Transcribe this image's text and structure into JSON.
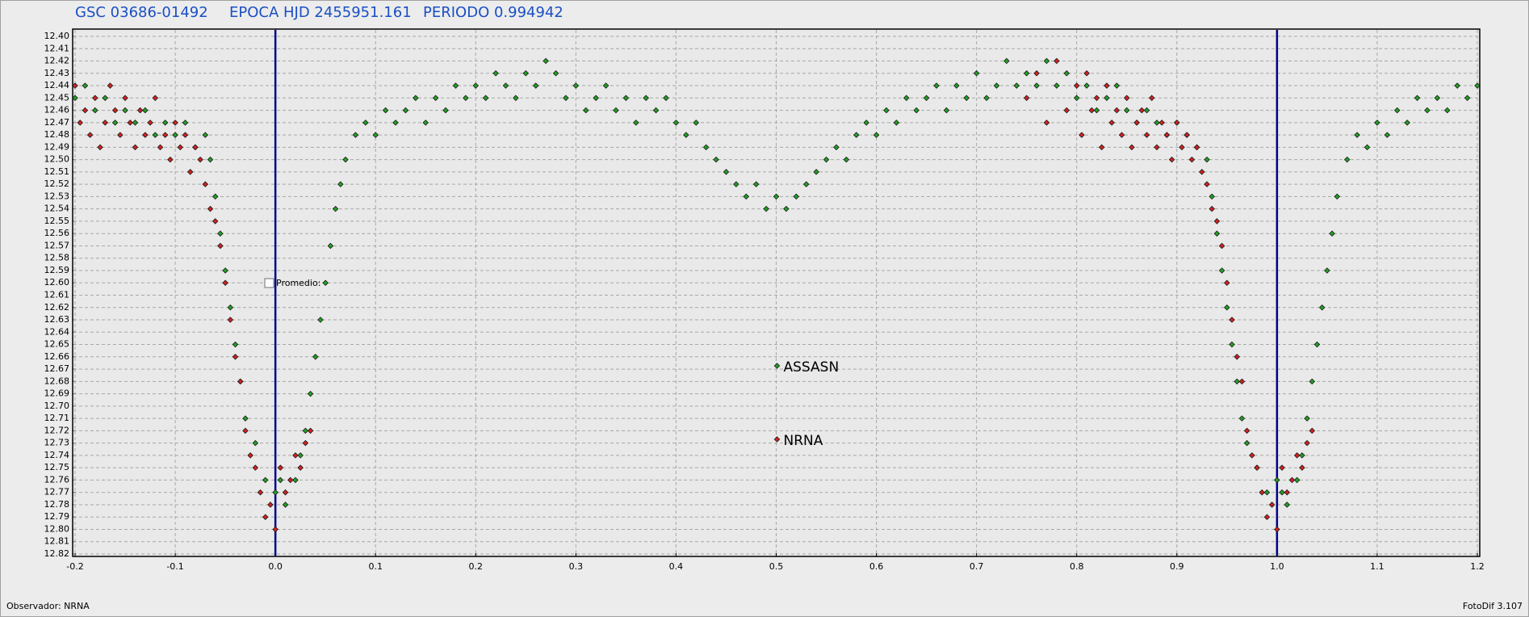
{
  "chart_data": {
    "type": "scatter",
    "title_parts": [
      "GSC 03686-01492",
      "EPOCA HJD 2455951.161",
      "PERIODO 0.994942"
    ],
    "checkbox_label": "Promedio:",
    "footer_left": "Observador: NRNA",
    "footer_right": "FotoDif 3.107",
    "xlim": [
      -0.2,
      1.2
    ],
    "xticks": [
      -0.2,
      -0.1,
      {
        "value": 0,
        "label": "0.0"
      },
      0.1,
      0.2,
      0.3,
      0.4,
      0.5,
      0.6,
      0.7,
      0.8,
      0.9,
      {
        "value": 1,
        "label": "1.0"
      },
      1.1,
      1.2
    ],
    "ylim": [
      12.4,
      12.82
    ],
    "y_inverted": true,
    "yticks": [
      {
        "value": 12.4,
        "label": "12.40"
      },
      12.41,
      12.42,
      12.43,
      12.44,
      12.45,
      12.46,
      12.47,
      12.48,
      12.49,
      {
        "value": 12.5,
        "label": "12.50"
      },
      12.51,
      12.52,
      12.53,
      12.54,
      12.55,
      12.56,
      12.57,
      12.58,
      12.59,
      {
        "value": 12.6,
        "label": "12.60"
      },
      12.61,
      12.62,
      12.63,
      12.64,
      12.65,
      12.66,
      12.67,
      12.68,
      12.69,
      {
        "value": 12.7,
        "label": "12.70"
      },
      12.71,
      12.72,
      12.73,
      12.74,
      12.75,
      12.76,
      12.77,
      12.78,
      12.79,
      {
        "value": 12.8,
        "label": "12.80"
      },
      12.81,
      12.82
    ],
    "grid": true,
    "reference_lines": [
      0,
      1
    ],
    "reference_color": "#00008b",
    "legend": "center",
    "series": [
      {
        "name": "ASSASN",
        "color": "#22a022",
        "x": [
          -0.2,
          -0.19,
          -0.18,
          -0.17,
          -0.16,
          -0.15,
          -0.14,
          -0.13,
          -0.12,
          -0.11,
          -0.1,
          -0.09,
          -0.08,
          -0.07,
          -0.065,
          -0.06,
          -0.055,
          -0.05,
          -0.045,
          -0.04,
          -0.035,
          -0.03,
          -0.02,
          -0.01,
          0,
          0.005,
          0.01,
          0.02,
          0.025,
          0.03,
          0.035,
          0.04,
          0.045,
          0.05,
          0.055,
          0.06,
          0.065,
          0.07,
          0.08,
          0.09,
          0.1,
          0.11,
          0.12,
          0.13,
          0.14,
          0.15,
          0.16,
          0.17,
          0.18,
          0.19,
          0.2,
          0.21,
          0.22,
          0.23,
          0.24,
          0.25,
          0.26,
          0.27,
          0.28,
          0.29,
          0.3,
          0.31,
          0.32,
          0.33,
          0.34,
          0.35,
          0.36,
          0.37,
          0.38,
          0.39,
          0.4,
          0.41,
          0.42,
          0.43,
          0.44,
          0.45,
          0.46,
          0.47,
          0.48,
          0.49,
          0.5,
          0.51,
          0.52,
          0.53,
          0.54,
          0.55,
          0.56,
          0.57,
          0.58,
          0.59,
          0.6,
          0.61,
          0.62,
          0.63,
          0.64,
          0.65,
          0.66,
          0.67,
          0.68,
          0.69,
          0.7,
          0.71,
          0.72,
          0.73,
          0.74,
          0.75,
          0.76,
          0.77,
          0.78,
          0.79,
          0.8,
          0.81,
          0.82,
          0.83,
          0.84,
          0.85,
          0.86,
          0.87,
          0.88,
          0.89,
          0.9,
          0.91,
          0.92,
          0.93,
          0.935,
          0.94,
          0.945,
          0.95,
          0.955,
          0.96,
          0.965,
          0.97,
          0.98,
          0.99,
          1,
          1.005,
          1.01,
          1.02,
          1.025,
          1.03,
          1.035,
          1.04,
          1.045,
          1.05,
          1.055,
          1.06,
          1.07,
          1.08,
          1.09,
          1.1,
          1.11,
          1.12,
          1.13,
          1.14,
          1.15,
          1.16,
          1.17,
          1.18,
          1.19,
          1.2
        ],
        "values": [
          12.45,
          12.44,
          12.46,
          12.45,
          12.47,
          12.46,
          12.47,
          12.46,
          12.48,
          12.47,
          12.48,
          12.47,
          12.49,
          12.48,
          12.5,
          12.53,
          12.56,
          12.59,
          12.62,
          12.65,
          12.68,
          12.71,
          12.73,
          12.76,
          12.77,
          12.76,
          12.78,
          12.76,
          12.74,
          12.72,
          12.69,
          12.66,
          12.63,
          12.6,
          12.57,
          12.54,
          12.52,
          12.5,
          12.48,
          12.47,
          12.48,
          12.46,
          12.47,
          12.46,
          12.45,
          12.47,
          12.45,
          12.46,
          12.44,
          12.45,
          12.44,
          12.45,
          12.43,
          12.44,
          12.45,
          12.43,
          12.44,
          12.42,
          12.43,
          12.45,
          12.44,
          12.46,
          12.45,
          12.44,
          12.46,
          12.45,
          12.47,
          12.45,
          12.46,
          12.45,
          12.47,
          12.48,
          12.47,
          12.49,
          12.5,
          12.51,
          12.52,
          12.53,
          12.52,
          12.54,
          12.53,
          12.54,
          12.53,
          12.52,
          12.51,
          12.5,
          12.49,
          12.5,
          12.48,
          12.47,
          12.48,
          12.46,
          12.47,
          12.45,
          12.46,
          12.45,
          12.44,
          12.46,
          12.44,
          12.45,
          12.43,
          12.45,
          12.44,
          12.42,
          12.44,
          12.43,
          12.44,
          12.42,
          12.44,
          12.43,
          12.45,
          12.44,
          12.46,
          12.45,
          12.44,
          12.46,
          12.47,
          12.46,
          12.47,
          12.48,
          12.47,
          12.48,
          12.49,
          12.5,
          12.53,
          12.56,
          12.59,
          12.62,
          12.65,
          12.68,
          12.71,
          12.73,
          12.75,
          12.77,
          12.76,
          12.77,
          12.78,
          12.76,
          12.74,
          12.71,
          12.68,
          12.65,
          12.62,
          12.59,
          12.56,
          12.53,
          12.5,
          12.48,
          12.49,
          12.47,
          12.48,
          12.46,
          12.47,
          12.45,
          12.46,
          12.45,
          12.46,
          12.44,
          12.45,
          12.44
        ]
      },
      {
        "name": "NRNA",
        "color": "#d42020",
        "x": [
          -0.2,
          -0.195,
          -0.19,
          -0.185,
          -0.18,
          -0.175,
          -0.17,
          -0.165,
          -0.16,
          -0.155,
          -0.15,
          -0.145,
          -0.14,
          -0.135,
          -0.13,
          -0.125,
          -0.12,
          -0.115,
          -0.11,
          -0.105,
          -0.1,
          -0.095,
          -0.09,
          -0.085,
          -0.08,
          -0.075,
          -0.07,
          -0.065,
          -0.06,
          -0.055,
          -0.05,
          -0.045,
          -0.04,
          -0.035,
          -0.03,
          -0.025,
          -0.02,
          -0.015,
          -0.01,
          -0.005,
          0,
          0.005,
          0.01,
          0.015,
          0.02,
          0.025,
          0.03,
          0.035,
          0.75,
          0.76,
          0.77,
          0.78,
          0.79,
          0.8,
          0.805,
          0.81,
          0.815,
          0.82,
          0.825,
          0.83,
          0.835,
          0.84,
          0.845,
          0.85,
          0.855,
          0.86,
          0.865,
          0.87,
          0.875,
          0.88,
          0.885,
          0.89,
          0.895,
          0.9,
          0.905,
          0.91,
          0.915,
          0.92,
          0.925,
          0.93,
          0.935,
          0.94,
          0.945,
          0.95,
          0.955,
          0.96,
          0.965,
          0.97,
          0.975,
          0.98,
          0.985,
          0.99,
          0.995,
          1,
          1.005,
          1.01,
          1.015,
          1.02,
          1.025,
          1.03,
          1.035
        ],
        "values": [
          12.44,
          12.47,
          12.46,
          12.48,
          12.45,
          12.49,
          12.47,
          12.44,
          12.46,
          12.48,
          12.45,
          12.47,
          12.49,
          12.46,
          12.48,
          12.47,
          12.45,
          12.49,
          12.48,
          12.5,
          12.47,
          12.49,
          12.48,
          12.51,
          12.49,
          12.5,
          12.52,
          12.54,
          12.55,
          12.57,
          12.6,
          12.63,
          12.66,
          12.68,
          12.72,
          12.74,
          12.75,
          12.77,
          12.79,
          12.78,
          12.8,
          12.75,
          12.77,
          12.76,
          12.74,
          12.75,
          12.73,
          12.72,
          12.45,
          12.43,
          12.47,
          12.42,
          12.46,
          12.44,
          12.48,
          12.43,
          12.46,
          12.45,
          12.49,
          12.44,
          12.47,
          12.46,
          12.48,
          12.45,
          12.49,
          12.47,
          12.46,
          12.48,
          12.45,
          12.49,
          12.47,
          12.48,
          12.5,
          12.47,
          12.49,
          12.48,
          12.5,
          12.49,
          12.51,
          12.52,
          12.54,
          12.55,
          12.57,
          12.6,
          12.63,
          12.66,
          12.68,
          12.72,
          12.74,
          12.75,
          12.77,
          12.79,
          12.78,
          12.8,
          12.75,
          12.77,
          12.76,
          12.74,
          12.75,
          12.73,
          12.72
        ]
      }
    ]
  }
}
